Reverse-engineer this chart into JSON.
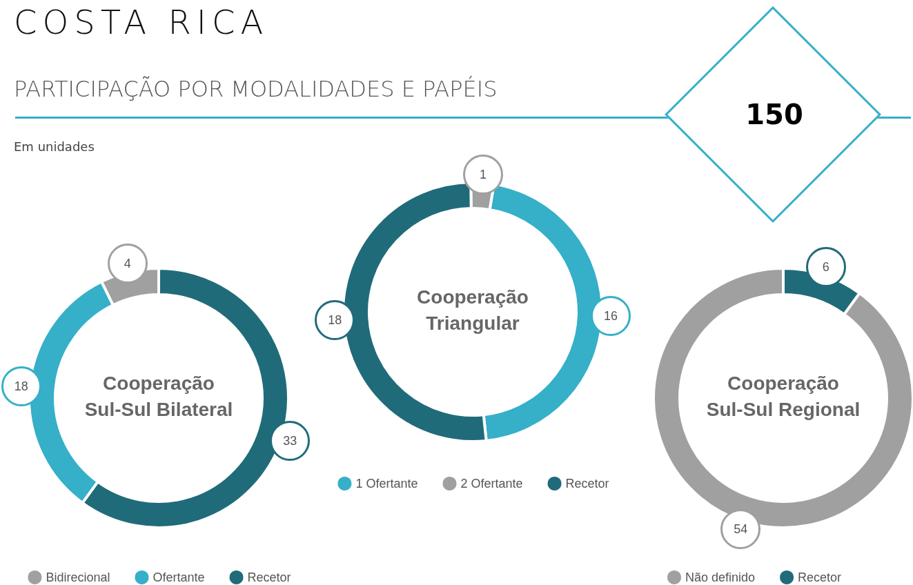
{
  "chart_data": [
    {
      "type": "other",
      "title": "COSTA RICA",
      "subtitle": "PARTICIPAÇÃO POR MODALIDADES E PAPÉIS",
      "annotations": [
        "150",
        "Em unidades"
      ]
    },
    {
      "type": "donut",
      "title": "Cooperação Sul-Sul Bilateral",
      "categories": [
        "Bidirecional",
        "Ofertante",
        "Recetor"
      ],
      "values": [
        4,
        18,
        33
      ],
      "colors": [
        "#a0a0a0",
        "#36afc9",
        "#206b7a"
      ],
      "data_labels": true,
      "legend": "bottom"
    },
    {
      "type": "donut",
      "title": "Cooperação Triangular",
      "categories": [
        "1 Ofertante",
        "2 Ofertante",
        "Recetor"
      ],
      "values": [
        16,
        1,
        18
      ],
      "colors": [
        "#36afc9",
        "#a0a0a0",
        "#206b7a"
      ],
      "data_labels": true,
      "legend": "bottom"
    },
    {
      "type": "donut",
      "title": "Cooperação Sul-Sul Regional",
      "categories": [
        "Não definido",
        "Recetor"
      ],
      "values": [
        54,
        6
      ],
      "colors": [
        "#a0a0a0",
        "#206b7a"
      ],
      "data_labels": true,
      "legend": "bottom"
    }
  ]
}
